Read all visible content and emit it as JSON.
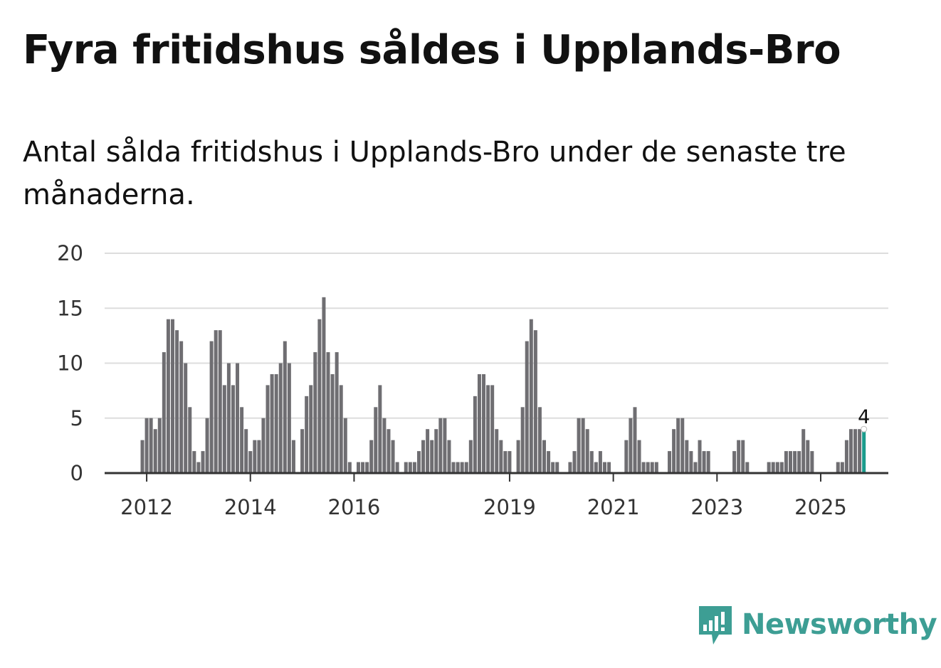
{
  "title": "Fyra fritidshus såldes i Upplands-Bro",
  "subtitle": "Antal sålda fritidshus i Upplands-Bro under de senaste tre månaderna.",
  "brand": {
    "name": "Newsworthy",
    "icon": "newsworthy-logo-icon",
    "color": "#3d9e94"
  },
  "chart_data": {
    "type": "bar",
    "title": "",
    "xlabel": "",
    "ylabel": "",
    "ylim": [
      0,
      20
    ],
    "yticks": [
      0,
      5,
      10,
      15,
      20
    ],
    "xticks": [
      "2012",
      "2014",
      "2016",
      "2019",
      "2021",
      "2023",
      "2025"
    ],
    "grid": true,
    "bar_color": "#6f6e72",
    "highlight_color": "#1a9b8c",
    "highlight_label": "4",
    "series": [
      {
        "start": "2011-12",
        "frequency": "monthly",
        "values": [
          3,
          5,
          5,
          4,
          5,
          11,
          14,
          14,
          13,
          12,
          10,
          6,
          2,
          1,
          2,
          5,
          12,
          13,
          13,
          8,
          10,
          8,
          10,
          6,
          4,
          2,
          3,
          3,
          5,
          8,
          9,
          9,
          10,
          12,
          10,
          3,
          null,
          4,
          7,
          8,
          11,
          14,
          16,
          11,
          9,
          11,
          8,
          5,
          1,
          null,
          1,
          1,
          1,
          3,
          6,
          8,
          5,
          4,
          3,
          1,
          null,
          1,
          1,
          1,
          2,
          3,
          4,
          3,
          4,
          5,
          5,
          3,
          1,
          1,
          1,
          1,
          3,
          7,
          9,
          9,
          8,
          8,
          4,
          3,
          2,
          2,
          null,
          3,
          6,
          12,
          14,
          13,
          6,
          3,
          2,
          1,
          1,
          null,
          null,
          1,
          2,
          5,
          5,
          4,
          2,
          1,
          2,
          1,
          1,
          null,
          null,
          null,
          3,
          5,
          6,
          3,
          1,
          1,
          1,
          1,
          null,
          null,
          2,
          4,
          5,
          5,
          3,
          2,
          1,
          3,
          2,
          2,
          null,
          null,
          null,
          null,
          null,
          2,
          3,
          3,
          1,
          null,
          null,
          null,
          null,
          1,
          1,
          1,
          1,
          2,
          2,
          2,
          2,
          4,
          3,
          2,
          null,
          null,
          null,
          null,
          null,
          1,
          1,
          3,
          4,
          4,
          4,
          4
        ]
      }
    ]
  }
}
